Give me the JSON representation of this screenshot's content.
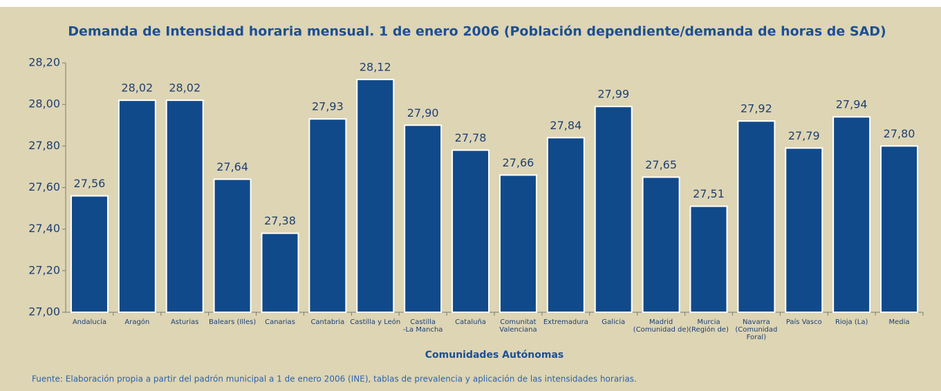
{
  "chart_data": {
    "type": "bar",
    "title": "Demanda de Intensidad horaria mensual. 1 de enero 2006 (Población dependiente/demanda de horas de SAD)",
    "x_label": "Comunidades Autónomas",
    "source": "Fuente: Elaboración propia a partir del padrón municipal a 1 de enero 2006 (INE), tablas de prevalencia y aplicación de las intensidades horarias.",
    "categories": [
      "Andalucía",
      "Aragón",
      "Asturias",
      "Balears (Illes)",
      "Canarias",
      "Cantabria",
      "Castilla y León",
      "Castilla\n-La Mancha",
      "Cataluña",
      "Comunitat\nValenciana",
      "Extremadura",
      "Galicia",
      "Madrid\n(Comunidad de)",
      "Murcia\n(Región de)",
      "Navarra\n(Comunidad Foral)",
      "País Vasco",
      "Rioja (La)",
      "Media"
    ],
    "values": [
      27.56,
      28.02,
      28.02,
      27.64,
      27.38,
      27.93,
      28.12,
      27.9,
      27.78,
      27.66,
      27.84,
      27.99,
      27.65,
      27.51,
      27.92,
      27.79,
      27.94,
      27.8
    ],
    "value_labels": [
      "27,56",
      "28,02",
      "28,02",
      "27,64",
      "27,38",
      "27,93",
      "28,12",
      "27,90",
      "27,78",
      "27,66",
      "27,84",
      "27,99",
      "27,65",
      "27,51",
      "27,92",
      "27,79",
      "27,94",
      "27,80"
    ],
    "color": "#104a8a",
    "ylim": [
      27.0,
      28.2
    ],
    "yticks": [
      {
        "value": 27.0,
        "label": "27,00"
      },
      {
        "value": 27.2,
        "label": "27,20"
      },
      {
        "value": 27.4,
        "label": "27,40"
      },
      {
        "value": 27.6,
        "label": "27,60"
      },
      {
        "value": 27.8,
        "label": "27,80"
      },
      {
        "value": 28.0,
        "label": "28,00"
      },
      {
        "value": 28.2,
        "label": "28,20"
      }
    ],
    "grid": false
  }
}
